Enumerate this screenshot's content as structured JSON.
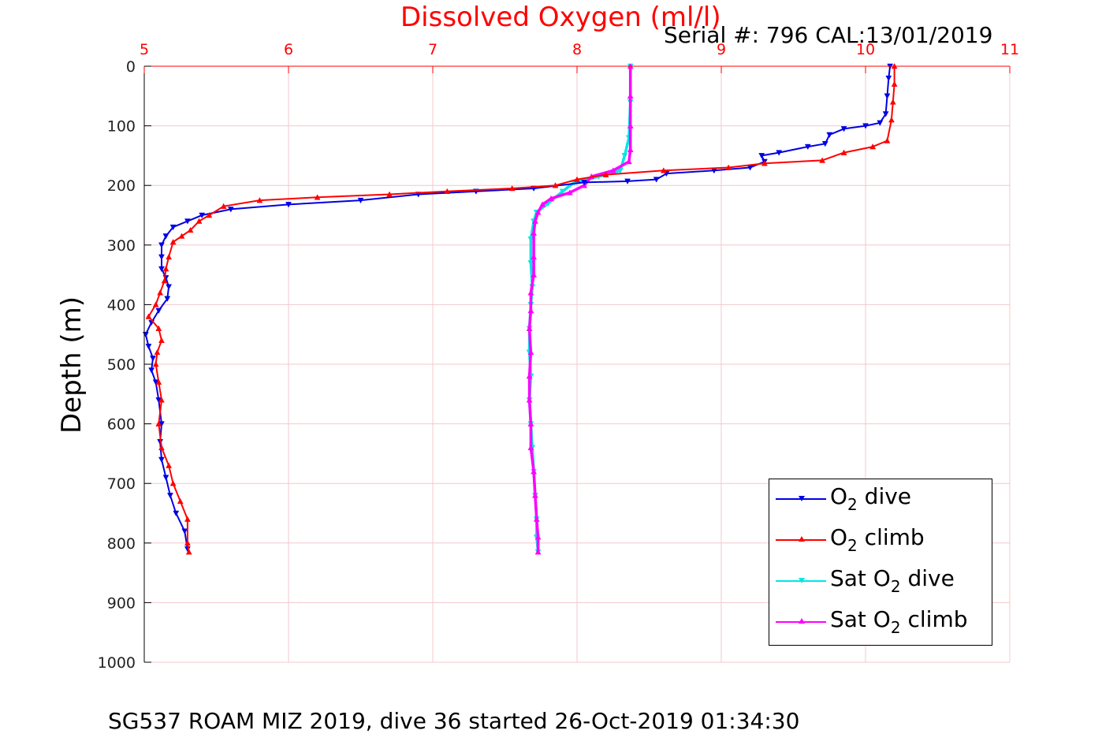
{
  "title": "Dissolved Oxygen (ml/l)",
  "serial": "Serial #: 796  CAL:13/01/2019",
  "caption": "SG537 ROAM MIZ 2019, dive 36 started 26-Oct-2019 01:34:30",
  "colors": {
    "o2_dive": "#0000e6",
    "o2_climb": "#ff0000",
    "sat_dive": "#00e6e6",
    "sat_climb": "#ff00ff",
    "grid": "#f3c8cd",
    "x_axis": "#ff0000"
  },
  "legend": [
    {
      "pre": "O",
      "sub": "2",
      "post": " dive",
      "color": "#0000e6",
      "marker": "down"
    },
    {
      "pre": "O",
      "sub": "2",
      "post": " climb",
      "color": "#ff0000",
      "marker": "up"
    },
    {
      "pre": "Sat O",
      "sub": "2",
      "post": " dive",
      "color": "#00e6e6",
      "marker": "down"
    },
    {
      "pre": "Sat O",
      "sub": "2",
      "post": " climb",
      "color": "#ff00ff",
      "marker": "up"
    }
  ],
  "chart_data": {
    "type": "line",
    "title": "Dissolved Oxygen (ml/l)",
    "xlabel": "Dissolved Oxygen (ml/l)",
    "ylabel": "Depth (m)",
    "xlim": [
      5,
      11
    ],
    "ylim": [
      0,
      1000
    ],
    "y_reversed": true,
    "x_axis_position": "top",
    "xticks": [
      5,
      6,
      7,
      8,
      9,
      10,
      11
    ],
    "yticks": [
      0,
      100,
      200,
      300,
      400,
      500,
      600,
      700,
      800,
      900,
      1000
    ],
    "grid": true,
    "legend_position": "bottom-right",
    "series": [
      {
        "name": "O2 dive",
        "marker": "down-triangle",
        "points": [
          [
            10.17,
            0
          ],
          [
            10.16,
            20
          ],
          [
            10.15,
            50
          ],
          [
            10.14,
            80
          ],
          [
            10.1,
            95
          ],
          [
            10.0,
            100
          ],
          [
            9.85,
            105
          ],
          [
            9.75,
            115
          ],
          [
            9.72,
            130
          ],
          [
            9.6,
            135
          ],
          [
            9.4,
            145
          ],
          [
            9.28,
            150
          ],
          [
            9.3,
            160
          ],
          [
            9.2,
            170
          ],
          [
            8.95,
            175
          ],
          [
            8.62,
            180
          ],
          [
            8.55,
            190
          ],
          [
            8.35,
            193
          ],
          [
            8.05,
            195
          ],
          [
            7.7,
            205
          ],
          [
            7.3,
            210
          ],
          [
            6.9,
            215
          ],
          [
            6.5,
            225
          ],
          [
            6.0,
            232
          ],
          [
            5.6,
            240
          ],
          [
            5.4,
            250
          ],
          [
            5.3,
            260
          ],
          [
            5.2,
            270
          ],
          [
            5.15,
            285
          ],
          [
            5.12,
            300
          ],
          [
            5.12,
            320
          ],
          [
            5.12,
            340
          ],
          [
            5.15,
            355
          ],
          [
            5.17,
            370
          ],
          [
            5.16,
            390
          ],
          [
            5.1,
            410
          ],
          [
            5.05,
            430
          ],
          [
            5.01,
            450
          ],
          [
            5.03,
            470
          ],
          [
            5.06,
            490
          ],
          [
            5.05,
            510
          ],
          [
            5.08,
            530
          ],
          [
            5.1,
            560
          ],
          [
            5.12,
            600
          ],
          [
            5.11,
            630
          ],
          [
            5.12,
            660
          ],
          [
            5.15,
            690
          ],
          [
            5.18,
            720
          ],
          [
            5.22,
            750
          ],
          [
            5.28,
            780
          ],
          [
            5.3,
            810
          ]
        ]
      },
      {
        "name": "O2 climb",
        "marker": "up-triangle",
        "points": [
          [
            10.2,
            0
          ],
          [
            10.2,
            30
          ],
          [
            10.19,
            60
          ],
          [
            10.18,
            90
          ],
          [
            10.15,
            125
          ],
          [
            10.05,
            135
          ],
          [
            9.85,
            145
          ],
          [
            9.7,
            158
          ],
          [
            9.3,
            163
          ],
          [
            9.05,
            170
          ],
          [
            8.6,
            175
          ],
          [
            8.2,
            182
          ],
          [
            8.0,
            190
          ],
          [
            7.85,
            200
          ],
          [
            7.55,
            205
          ],
          [
            7.1,
            210
          ],
          [
            6.7,
            215
          ],
          [
            6.2,
            220
          ],
          [
            5.8,
            225
          ],
          [
            5.55,
            235
          ],
          [
            5.45,
            250
          ],
          [
            5.38,
            260
          ],
          [
            5.32,
            275
          ],
          [
            5.26,
            285
          ],
          [
            5.2,
            295
          ],
          [
            5.17,
            320
          ],
          [
            5.15,
            340
          ],
          [
            5.14,
            360
          ],
          [
            5.11,
            380
          ],
          [
            5.08,
            400
          ],
          [
            5.03,
            420
          ],
          [
            5.1,
            440
          ],
          [
            5.12,
            460
          ],
          [
            5.09,
            480
          ],
          [
            5.08,
            500
          ],
          [
            5.1,
            530
          ],
          [
            5.12,
            560
          ],
          [
            5.1,
            600
          ],
          [
            5.12,
            640
          ],
          [
            5.17,
            670
          ],
          [
            5.2,
            700
          ],
          [
            5.25,
            730
          ],
          [
            5.3,
            760
          ],
          [
            5.3,
            800
          ],
          [
            5.31,
            815
          ]
        ]
      },
      {
        "name": "Sat O2 dive",
        "marker": "down-triangle",
        "points": [
          [
            8.37,
            0
          ],
          [
            8.37,
            60
          ],
          [
            8.36,
            120
          ],
          [
            8.33,
            150
          ],
          [
            8.3,
            175
          ],
          [
            8.15,
            185
          ],
          [
            7.98,
            195
          ],
          [
            7.9,
            210
          ],
          [
            7.8,
            230
          ],
          [
            7.72,
            245
          ],
          [
            7.7,
            260
          ],
          [
            7.68,
            290
          ],
          [
            7.68,
            330
          ],
          [
            7.69,
            370
          ],
          [
            7.68,
            400
          ],
          [
            7.67,
            440
          ],
          [
            7.67,
            480
          ],
          [
            7.68,
            520
          ],
          [
            7.67,
            560
          ],
          [
            7.68,
            600
          ],
          [
            7.69,
            640
          ],
          [
            7.7,
            680
          ],
          [
            7.71,
            720
          ],
          [
            7.72,
            760
          ],
          [
            7.72,
            790
          ],
          [
            7.73,
            815
          ]
        ]
      },
      {
        "name": "Sat O2 climb",
        "marker": "up-triangle",
        "points": [
          [
            8.37,
            0
          ],
          [
            8.37,
            50
          ],
          [
            8.37,
            100
          ],
          [
            8.37,
            140
          ],
          [
            8.36,
            160
          ],
          [
            8.25,
            175
          ],
          [
            8.1,
            185
          ],
          [
            8.05,
            200
          ],
          [
            7.95,
            212
          ],
          [
            7.82,
            222
          ],
          [
            7.76,
            232
          ],
          [
            7.73,
            245
          ],
          [
            7.71,
            260
          ],
          [
            7.7,
            280
          ],
          [
            7.7,
            320
          ],
          [
            7.7,
            350
          ],
          [
            7.68,
            380
          ],
          [
            7.68,
            410
          ],
          [
            7.67,
            440
          ],
          [
            7.68,
            480
          ],
          [
            7.67,
            520
          ],
          [
            7.67,
            560
          ],
          [
            7.68,
            600
          ],
          [
            7.68,
            640
          ],
          [
            7.7,
            680
          ],
          [
            7.71,
            720
          ],
          [
            7.72,
            760
          ],
          [
            7.73,
            790
          ],
          [
            7.73,
            815
          ]
        ]
      }
    ]
  }
}
